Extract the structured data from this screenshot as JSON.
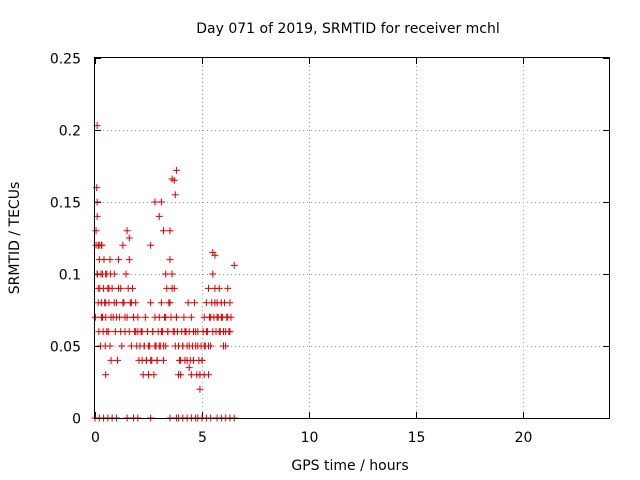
{
  "chart_data": {
    "type": "scatter",
    "title": "Day 071 of 2019, SRMTID for receiver mchl",
    "xlabel": "GPS time / hours",
    "ylabel": "SRMTID / TECUs",
    "xlim": [
      0,
      24
    ],
    "ylim": [
      0,
      0.25
    ],
    "xticks": [
      0,
      5,
      10,
      15,
      20
    ],
    "xtick_labels": [
      "0",
      "5",
      "10",
      "15",
      "20"
    ],
    "yticks": [
      0,
      0.05,
      0.1,
      0.15,
      0.2,
      0.25
    ],
    "ytick_labels": [
      "0",
      "0.05",
      "0.1",
      "0.15",
      "0.2",
      "0.25"
    ],
    "grid": true,
    "marker": "plus",
    "color": "#e00000",
    "series": [
      {
        "name": "SRMTID",
        "x": [
          0.02,
          0.05,
          0.08,
          0.1,
          0.12,
          0.15,
          0.18,
          0.2,
          0.22,
          0.25,
          0.28,
          0.3,
          0.32,
          0.35,
          0.38,
          0.4,
          0.42,
          0.45,
          0.48,
          0.5,
          0.55,
          0.6,
          0.62,
          0.65,
          0.7,
          0.72,
          0.75,
          0.8,
          0.85,
          0.9,
          0.95,
          1.0,
          1.05,
          1.1,
          1.15,
          1.2,
          1.25,
          1.3,
          1.35,
          1.4,
          1.45,
          1.5,
          1.55,
          1.6,
          1.65,
          1.7,
          1.75,
          1.8,
          1.85,
          1.9,
          1.95,
          2.0,
          2.05,
          2.1,
          2.15,
          2.2,
          2.25,
          2.3,
          2.35,
          2.4,
          2.45,
          2.5,
          2.55,
          2.6,
          2.65,
          2.7,
          2.75,
          2.8,
          2.85,
          2.9,
          2.95,
          3.0,
          3.05,
          3.1,
          3.15,
          3.2,
          3.25,
          3.3,
          3.35,
          3.4,
          3.45,
          3.5,
          3.55,
          3.6,
          3.65,
          3.7,
          3.75,
          3.8,
          3.85,
          3.9,
          3.95,
          4.0,
          4.05,
          4.1,
          4.15,
          4.2,
          4.25,
          4.3,
          4.35,
          4.4,
          4.45,
          4.5,
          4.55,
          4.6,
          4.65,
          4.7,
          4.75,
          4.8,
          4.85,
          4.9,
          4.95,
          5.0,
          5.05,
          5.1,
          5.15,
          5.2,
          5.25,
          5.3,
          5.35,
          5.4,
          5.45,
          5.5,
          5.55,
          5.6,
          5.65,
          5.7,
          5.75,
          5.8,
          5.85,
          5.9,
          5.95,
          6.0,
          6.05,
          6.1,
          6.15,
          6.2,
          6.25,
          6.3,
          6.35,
          6.5,
          0.05,
          0.1,
          0.15,
          0.2,
          0.3,
          0.35,
          0.5,
          0.55,
          0.65,
          0.75,
          0.9,
          1.0,
          1.1,
          1.2,
          1.3,
          1.4,
          1.6,
          1.7,
          1.8,
          1.9,
          2.0,
          2.1,
          2.2,
          2.3,
          2.4,
          2.5,
          2.6,
          2.7,
          2.8,
          2.9,
          3.0,
          3.1,
          3.2,
          3.3,
          3.4,
          3.5,
          3.6,
          3.7,
          3.8,
          3.9,
          4.0,
          4.1,
          4.2,
          4.3,
          4.4,
          4.5,
          4.6,
          4.7,
          4.8,
          4.9,
          5.0,
          5.1,
          5.2,
          5.3,
          5.4,
          5.5,
          5.6,
          5.7,
          5.8,
          5.9,
          6.0,
          6.1,
          6.2,
          6.3,
          0.1,
          0.3,
          0.5,
          0.7,
          1.5,
          2.6,
          2.8,
          3.0,
          3.1,
          3.2,
          3.3,
          3.5,
          3.6,
          3.7,
          3.75,
          3.8,
          5.5,
          5.6,
          0.1,
          0.15,
          0.5,
          1.6,
          2.5,
          3.9,
          4.4,
          4.9,
          5.1,
          5.3,
          0.0,
          0.2,
          0.4,
          0.6,
          0.8,
          1.0,
          1.5,
          1.8,
          2.0,
          2.6,
          3.5,
          3.8,
          3.9,
          4.1,
          4.3,
          4.5,
          4.7,
          4.8,
          5.0,
          5.2,
          5.4,
          5.7,
          5.9,
          6.1,
          6.3,
          6.5
        ],
        "y": [
          0.07,
          0.12,
          0.16,
          0.15,
          0.1,
          0.08,
          0.06,
          0.11,
          0.09,
          0.05,
          0.1,
          0.08,
          0.12,
          0.07,
          0.06,
          0.09,
          0.11,
          0.08,
          0.05,
          0.07,
          0.1,
          0.09,
          0.06,
          0.08,
          0.05,
          0.1,
          0.04,
          0.09,
          0.07,
          0.1,
          0.06,
          0.08,
          0.04,
          0.11,
          0.07,
          0.09,
          0.05,
          0.12,
          0.08,
          0.06,
          0.1,
          0.07,
          0.09,
          0.11,
          0.08,
          0.05,
          0.09,
          0.07,
          0.06,
          0.08,
          0.05,
          0.06,
          0.04,
          0.05,
          0.06,
          0.04,
          0.03,
          0.05,
          0.07,
          0.04,
          0.06,
          0.03,
          0.05,
          0.08,
          0.04,
          0.06,
          0.03,
          0.07,
          0.05,
          0.04,
          0.06,
          0.07,
          0.05,
          0.08,
          0.06,
          0.04,
          0.07,
          0.05,
          0.09,
          0.06,
          0.08,
          0.11,
          0.07,
          0.1,
          0.06,
          0.09,
          0.05,
          0.07,
          0.06,
          0.05,
          0.04,
          0.03,
          0.06,
          0.05,
          0.07,
          0.04,
          0.06,
          0.05,
          0.08,
          0.06,
          0.04,
          0.07,
          0.05,
          0.06,
          0.08,
          0.05,
          0.03,
          0.06,
          0.04,
          0.02,
          0.05,
          0.04,
          0.06,
          0.07,
          0.05,
          0.08,
          0.06,
          0.09,
          0.07,
          0.05,
          0.08,
          0.1,
          0.07,
          0.09,
          0.06,
          0.08,
          0.07,
          0.09,
          0.06,
          0.08,
          0.07,
          0.05,
          0.08,
          0.06,
          0.07,
          0.09,
          0.06,
          0.08,
          0.07,
          0.106,
          0.13,
          0.1,
          0.09,
          0.12,
          0.07,
          0.1,
          0.08,
          0.06,
          0.09,
          0.07,
          0.08,
          0.07,
          0.09,
          0.06,
          0.08,
          0.07,
          0.06,
          0.08,
          0.07,
          0.06,
          0.07,
          0.05,
          0.06,
          0.05,
          0.04,
          0.05,
          0.04,
          0.06,
          0.05,
          0.04,
          0.05,
          0.06,
          0.05,
          0.07,
          0.06,
          0.08,
          0.09,
          0.06,
          0.07,
          0.05,
          0.04,
          0.05,
          0.06,
          0.04,
          0.05,
          0.03,
          0.04,
          0.06,
          0.05,
          0.03,
          0.04,
          0.05,
          0.06,
          0.05,
          0.07,
          0.06,
          0.08,
          0.07,
          0.06,
          0.07,
          0.06,
          0.05,
          0.07,
          0.06,
          0.14,
          0.12,
          0.1,
          0.11,
          0.13,
          0.12,
          0.15,
          0.14,
          0.15,
          0.13,
          0.1,
          0.13,
          0.166,
          0.165,
          0.155,
          0.172,
          0.115,
          0.113,
          0.203,
          0.12,
          0.03,
          0.125,
          0.03,
          0.03,
          0.035,
          0.03,
          0.03,
          0.03,
          0,
          0,
          0,
          0,
          0,
          0,
          0,
          0,
          0,
          0,
          0,
          0,
          0,
          0,
          0,
          0,
          0,
          0,
          0,
          0,
          0,
          0,
          0,
          0,
          0,
          0
        ]
      }
    ]
  }
}
